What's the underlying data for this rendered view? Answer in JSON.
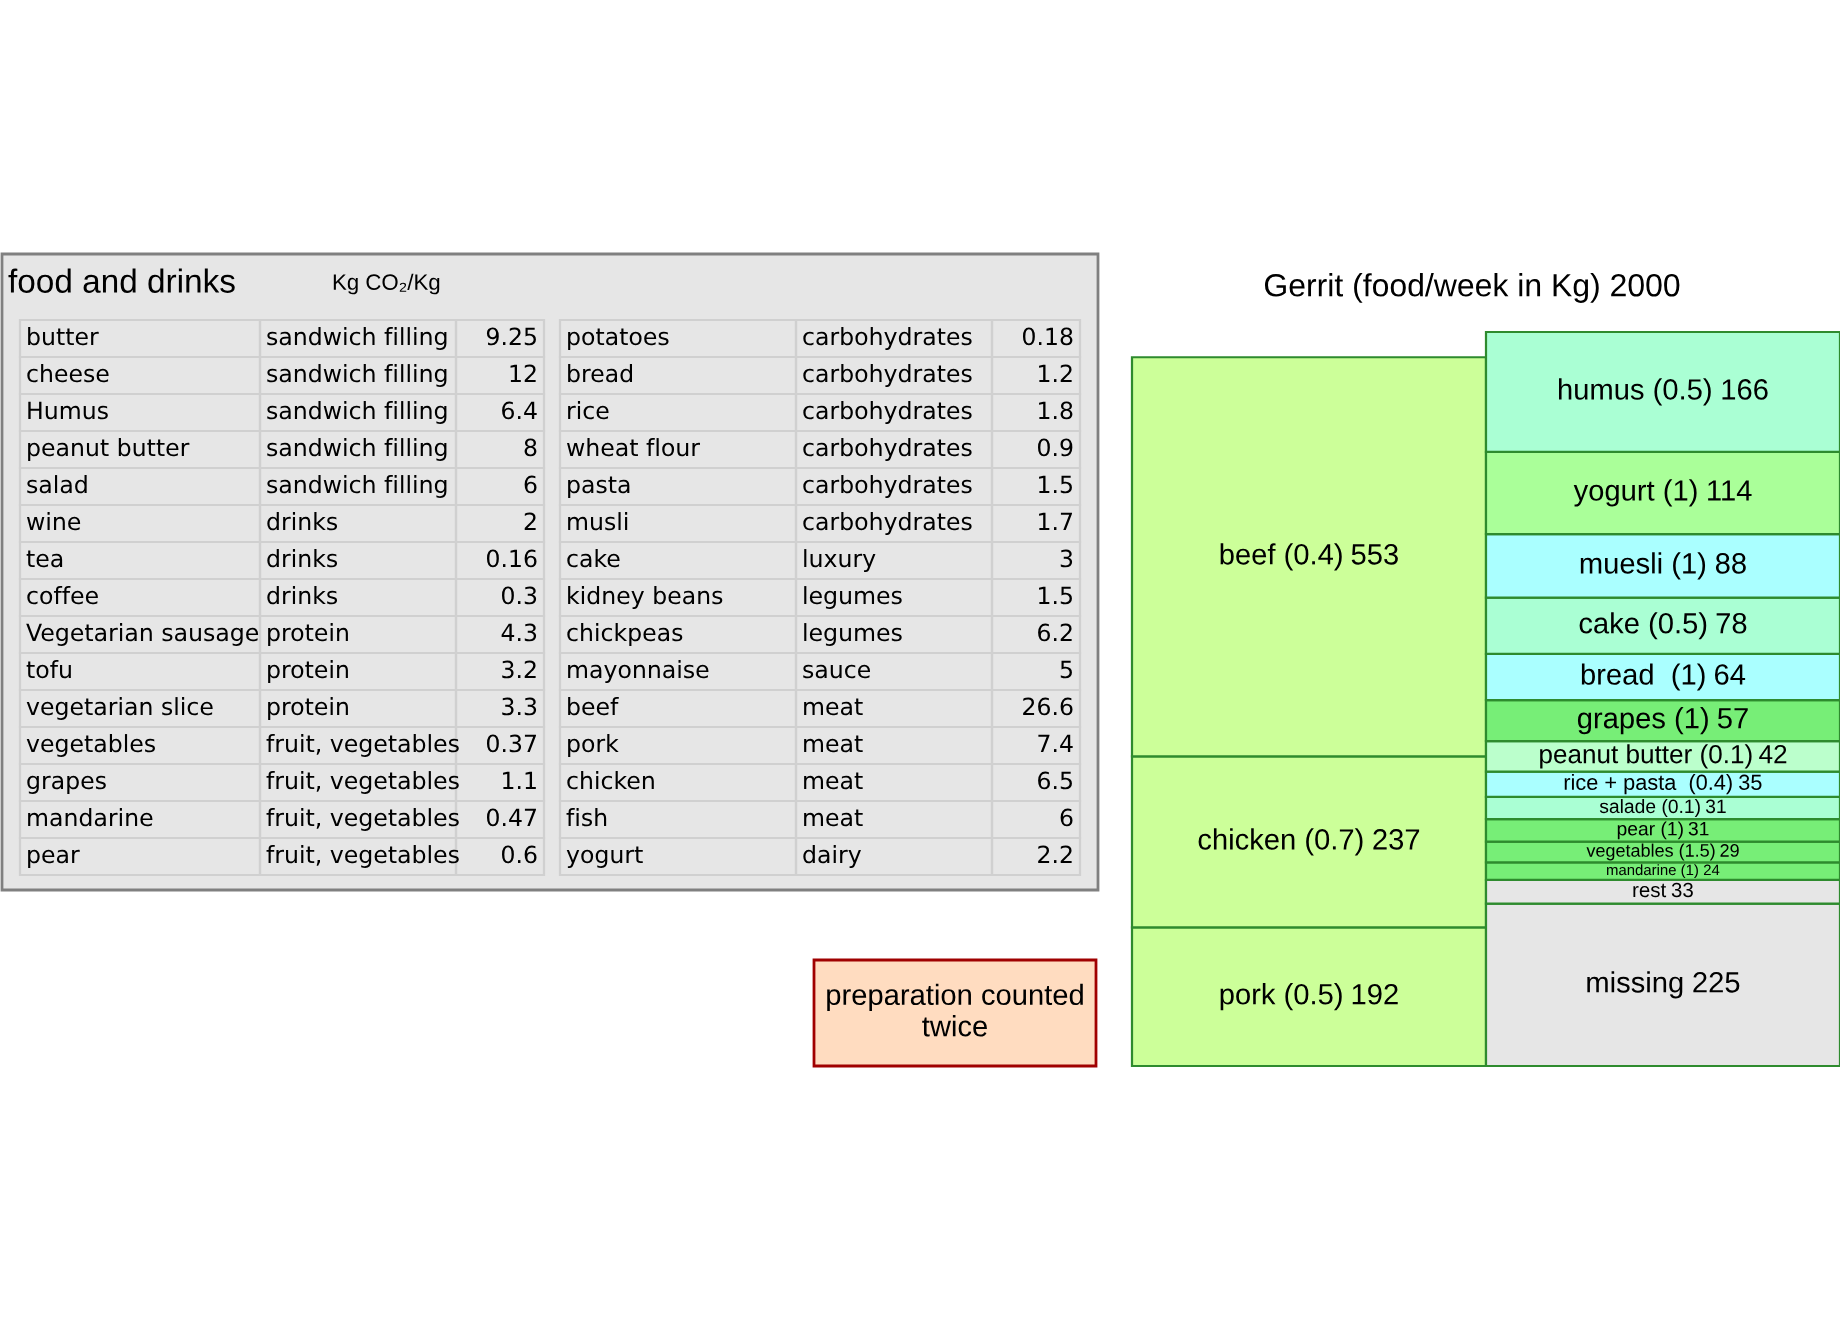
{
  "chart_data": [
    {
      "type": "other",
      "title": "food and drinks",
      "subtitle": "Kg CO₂/Kg",
      "annotations": [
        "butter",
        "sandwich filling",
        "9.25",
        "cheese",
        "sandwich filling",
        "12",
        "Humus",
        "sandwich filling",
        "6.4",
        "peanut butter",
        "sandwich filling",
        "8",
        "salad",
        "sandwich filling",
        "6",
        "wine",
        "drinks",
        "2",
        "tea",
        "drinks",
        "0.16",
        "coffee",
        "drinks",
        "0.3",
        "Vegetarian sausage",
        "protein",
        "4.3",
        "tofu",
        "protein",
        "3.2",
        "vegetarian slice",
        "protein",
        "3.3",
        "vegetables",
        "fruit, vegetables",
        "0.37",
        "grapes",
        "fruit, vegetables",
        "1.1",
        "mandarine",
        "fruit, vegetables",
        "0.47",
        "pear",
        "fruit, vegetables",
        "0.6",
        "potatoes",
        "carbohydrates",
        "0.18",
        "bread",
        "carbohydrates",
        "1.2",
        "rice",
        "carbohydrates",
        "1.8",
        "wheat flour",
        "carbohydrates",
        "0.9",
        "pasta",
        "carbohydrates",
        "1.5",
        "musli",
        "carbohydrates",
        "1.7",
        "cake",
        "luxury",
        "3",
        "kidney beans",
        "legumes",
        "1.5",
        "chickpeas",
        "legumes",
        "6.2",
        "mayonnaise",
        "sauce",
        "5",
        "beef",
        "meat",
        "26.6",
        "pork",
        "meat",
        "7.4",
        "chicken",
        "meat",
        "6.5",
        "fish",
        "meat",
        "6",
        "yogurt",
        "dairy",
        "2.2"
      ]
    },
    {
      "type": "other",
      "title": "Gerrit (food/week in Kg) 2000",
      "categories": [
        "pork (0.5)",
        "chicken (0.7)",
        "beef (0.4)",
        "missing",
        "rest",
        "mandarine (1)",
        "vegetables (1.5)",
        "pear (1)",
        "salade (0.1)",
        "rice + pasta  (0.4)",
        "peanut butter (0.1)",
        "grapes (1)",
        "bread  (1)",
        "cake (0.5)",
        "muesli (1)",
        "yogurt (1)",
        "humus (0.5)"
      ],
      "series": [
        {
          "values": [
            192,
            237,
            553,
            null,
            null,
            null,
            null,
            null,
            null,
            null,
            null,
            null,
            null,
            null,
            null,
            null,
            null
          ],
          "colors": [
            "#ccff99",
            "#ccff99",
            "#ccff99",
            null,
            null,
            null,
            null,
            null,
            null,
            null,
            null,
            null,
            null,
            null,
            null,
            null,
            null
          ]
        },
        {
          "values": [
            null,
            null,
            null,
            225,
            33,
            24,
            29,
            31,
            31,
            35,
            42,
            57,
            64,
            78,
            88,
            114,
            166
          ],
          "colors": [
            null,
            null,
            null,
            "#e6e6e6",
            "#e6e6e6",
            "#77ee77",
            "#77ee77",
            "#77ee77",
            "#aaffd4",
            "#aaffff",
            "#bbffcc",
            "#77ee77",
            "#aaffff",
            "#aaffd4",
            "#aaffff",
            "#aaff99",
            "#aaffd4"
          ]
        }
      ],
      "data_labels": true,
      "annotations": [
        "preparation counted twice"
      ]
    }
  ]
}
